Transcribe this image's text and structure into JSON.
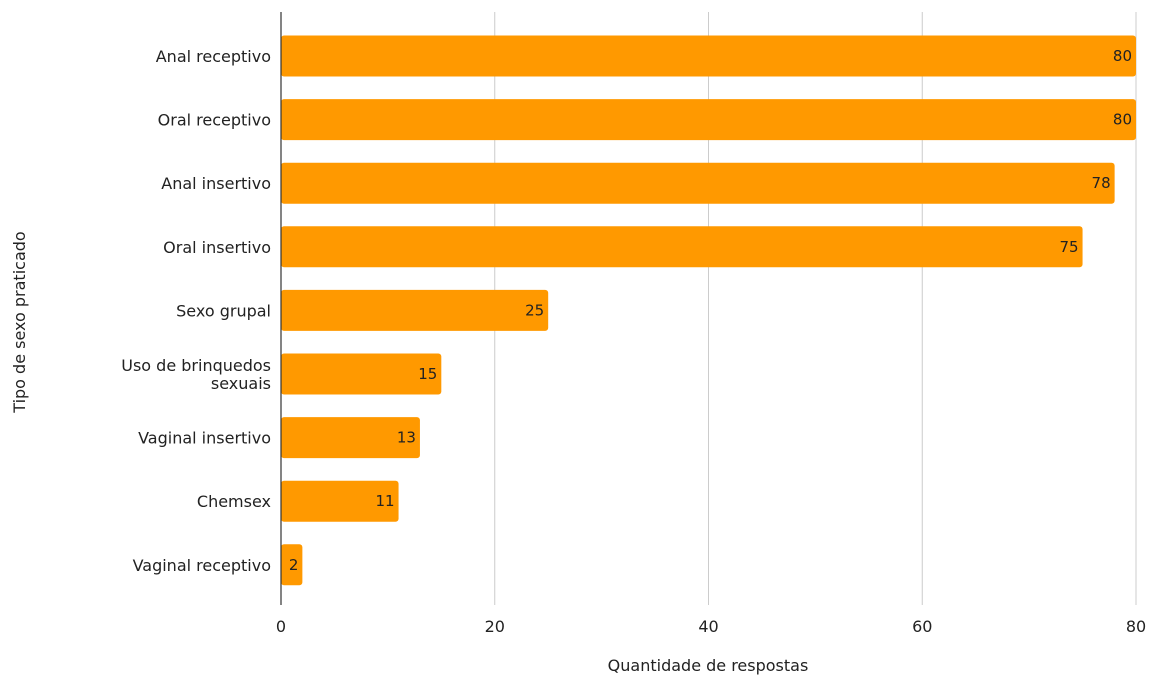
{
  "chart_data": {
    "type": "bar",
    "orientation": "horizontal",
    "categories": [
      "Anal receptivo",
      "Oral receptivo",
      "Anal insertivo",
      "Oral insertivo",
      "Sexo grupal",
      "Uso de brinquedos sexuais",
      "Vaginal insertivo",
      "Chemsex",
      "Vaginal receptivo"
    ],
    "values": [
      80,
      80,
      78,
      75,
      25,
      15,
      13,
      11,
      2
    ],
    "xlabel": "Quantidade de respostas",
    "ylabel": "Tipo de sexo praticado",
    "xlim": [
      0,
      80
    ],
    "xticks": [
      0,
      20,
      40,
      60,
      80
    ],
    "grid": "vertical",
    "bar_color": "#FF9900",
    "data_labels": true,
    "legend": "none"
  }
}
